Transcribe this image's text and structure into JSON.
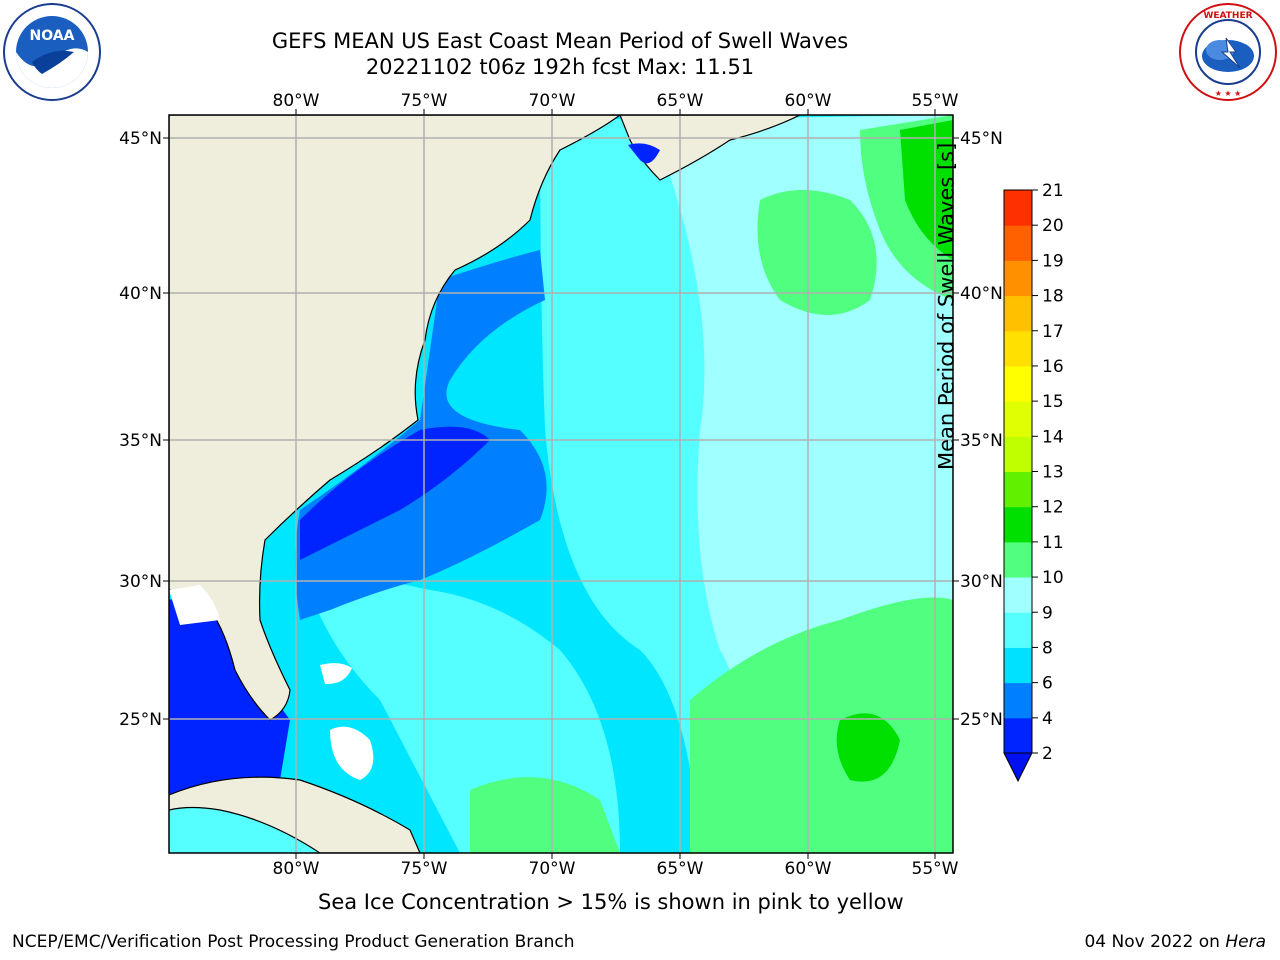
{
  "title": {
    "line1": "GEFS MEAN US East Coast Mean Period of Swell Waves",
    "line2": "20221102 t06z 192h fcst   Max: 11.51"
  },
  "map": {
    "lon_labels": [
      "80°W",
      "75°W",
      "70°W",
      "65°W",
      "60°W",
      "55°W"
    ],
    "lat_labels": [
      "45°N",
      "40°N",
      "35°N",
      "30°N",
      "25°N"
    ],
    "land_color": "#efeedc",
    "grid_color": "#b0b0b0"
  },
  "colorbar": {
    "title": "Mean Period of Swell Waves [s]",
    "ticks": [
      "2",
      "4",
      "6",
      "8",
      "9",
      "10",
      "11",
      "12",
      "13",
      "14",
      "15",
      "16",
      "17",
      "18",
      "19",
      "20",
      "21"
    ],
    "colors": [
      "#0024ff",
      "#0080ff",
      "#00e1ff",
      "#55ffff",
      "#a0ffff",
      "#50ff80",
      "#00e000",
      "#60f000",
      "#c0ff00",
      "#e0ff00",
      "#ffff00",
      "#ffe000",
      "#ffc000",
      "#ff9000",
      "#ff6000",
      "#ff3000",
      "#ff0000"
    ],
    "under_color": "#0010f0"
  },
  "notes": {
    "sea_ice": "Sea Ice Concentration > 15% is shown in pink to yellow"
  },
  "footer": {
    "left": "NCEP/EMC/Verification Post Processing Product Generation Branch",
    "date": "04 Nov 2022 on ",
    "machine": "Hera"
  },
  "logos": {
    "left": "noaa-logo",
    "right": "national-weather-service-logo"
  }
}
